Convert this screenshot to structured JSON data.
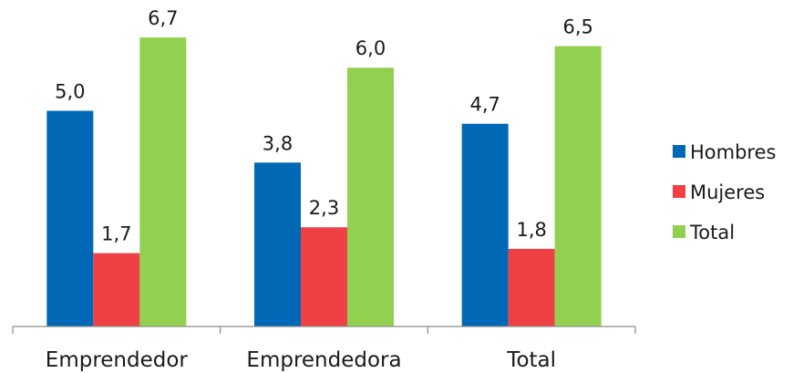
{
  "chart_data": {
    "type": "bar",
    "title": "",
    "xlabel": "",
    "ylabel": "",
    "categories": [
      "Emprendedor",
      "Emprendedora",
      "Total"
    ],
    "series": [
      {
        "name": "Hombres",
        "color": "#0068b4",
        "values": [
          5.0,
          3.8,
          4.7
        ],
        "labels": [
          "5,0",
          "3,8",
          "4,7"
        ]
      },
      {
        "name": "Mujeres",
        "color": "#ee4045",
        "values": [
          1.7,
          2.3,
          1.8
        ],
        "labels": [
          "1,7",
          "2,3",
          "1,8"
        ]
      },
      {
        "name": "Total",
        "color": "#92d050",
        "values": [
          6.7,
          6.0,
          6.5
        ],
        "labels": [
          "6,7",
          "6,0",
          "6,5"
        ]
      }
    ],
    "ylim": [
      0,
      7.4
    ],
    "grid": false,
    "y_axis_visible": false,
    "legend_position": "right"
  }
}
